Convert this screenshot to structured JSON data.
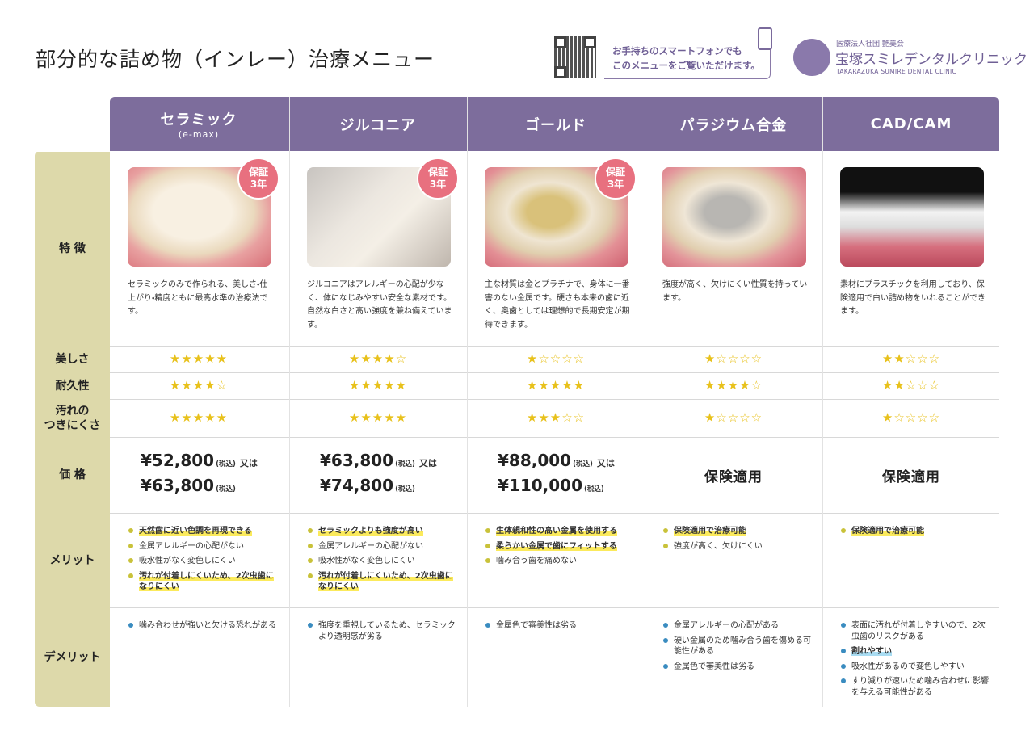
{
  "header": {
    "title": "部分的な詰め物（インレー）治療メニュー",
    "qr_note": [
      "お手持ちのスマートフォンでも",
      "このメニューをご覧いただけます。"
    ],
    "clinic": {
      "corp": "医療法人社団 艶美会",
      "name": "宝塚スミレデンタルクリニック",
      "english": "TAKARAZUKA SUMIRE DENTAL CLINIC"
    }
  },
  "table": {
    "row_labels": [
      [
        "特 徴"
      ],
      [
        "美しさ"
      ],
      [
        "耐久性"
      ],
      [
        "汚れの",
        "つきにくさ"
      ],
      [
        "価 格"
      ],
      [
        "メリット"
      ],
      [
        "デメリット"
      ]
    ],
    "columns": [
      {
        "name": "セラミック",
        "sub": "(e-max)",
        "badge": [
          "保証",
          "3年"
        ],
        "features": "セラミックのみで作られる、美しさ・仕上がり・精度ともに最高水準の治療法です。",
        "beauty": "★★★★★",
        "durability": "★★★★☆",
        "stain": "★★★★★",
        "price": {
          "lines": [
            {
              "amount": "¥52,800",
              "tax": "(税込)",
              "or": "又は"
            },
            {
              "amount": "¥63,800",
              "tax": "(税込)"
            }
          ]
        },
        "merits": [
          {
            "text": "天然歯に近い色調を再現できる",
            "highlight": true
          },
          {
            "text": "金属アレルギーの心配がない",
            "highlight": false
          },
          {
            "text": "吸水性がなく変色しにくい",
            "highlight": false
          },
          {
            "text": "汚れが付着しにくいため、2次虫歯になりにくい",
            "highlight": true
          }
        ],
        "demerits": [
          {
            "text": "噛み合わせが強いと欠ける恐れがある",
            "highlight": false
          }
        ]
      },
      {
        "name": "ジルコニア",
        "badge": [
          "保証",
          "3年"
        ],
        "features": "ジルコニアはアレルギーの心配が少なく、体になじみやすい安全な素材です。自然な白さと高い強度を兼ね備えています。",
        "beauty": "★★★★☆",
        "durability": "★★★★★",
        "stain": "★★★★★",
        "price": {
          "lines": [
            {
              "amount": "¥63,800",
              "tax": "(税込)",
              "or": "又は"
            },
            {
              "amount": "¥74,800",
              "tax": "(税込)"
            }
          ]
        },
        "merits": [
          {
            "text": "セラミックよりも強度が高い",
            "highlight": true
          },
          {
            "text": "金属アレルギーの心配がない",
            "highlight": false
          },
          {
            "text": "吸水性がなく変色しにくい",
            "highlight": false
          },
          {
            "text": "汚れが付着しにくいため、2次虫歯になりにくい",
            "highlight": true
          }
        ],
        "demerits": [
          {
            "text": "強度を重視しているため、セラミックより透明感が劣る",
            "highlight": false
          }
        ]
      },
      {
        "name": "ゴールド",
        "badge": [
          "保証",
          "3年"
        ],
        "features": "主な材質は金とプラチナで、身体に一番害のない金属です。硬さも本来の歯に近く、奥歯としては理想的で長期安定が期待できます。",
        "beauty": "★☆☆☆☆",
        "durability": "★★★★★",
        "stain": "★★★☆☆",
        "price": {
          "lines": [
            {
              "amount": "¥88,000",
              "tax": "(税込)",
              "or": "又は"
            },
            {
              "amount": "¥110,000",
              "tax": "(税込)"
            }
          ]
        },
        "merits": [
          {
            "text": "生体親和性の高い金属を使用する",
            "highlight": true
          },
          {
            "text": "柔らかい金属で歯にフィットする",
            "highlight": true
          },
          {
            "text": "噛み合う歯を痛めない",
            "highlight": false
          }
        ],
        "demerits": [
          {
            "text": "金属色で審美性は劣る",
            "highlight": false
          }
        ]
      },
      {
        "name": "パラジウム合金",
        "features": "強度が高く、欠けにくい性質を持っています。",
        "beauty": "★☆☆☆☆",
        "durability": "★★★★☆",
        "stain": "★☆☆☆☆",
        "price": {
          "text": "保険適用"
        },
        "merits": [
          {
            "text": "保険適用で治療可能",
            "highlight": true
          },
          {
            "text": "強度が高く、欠けにくい",
            "highlight": false
          }
        ],
        "demerits": [
          {
            "text": "金属アレルギーの心配がある",
            "highlight": false
          },
          {
            "text": "硬い金属のため噛み合う歯を傷める可能性がある",
            "highlight": false
          },
          {
            "text": "金属色で審美性は劣る",
            "highlight": false
          }
        ]
      },
      {
        "name": "CAD/CAM",
        "features": "素材にプラスチックを利用しており、保険適用で白い詰め物をいれることができます。",
        "beauty": "★★☆☆☆",
        "durability": "★★☆☆☆",
        "stain": "★☆☆☆☆",
        "price": {
          "text": "保険適用"
        },
        "merits": [
          {
            "text": "保険適用で治療可能",
            "highlight": true
          }
        ],
        "demerits": [
          {
            "text": "表面に汚れが付着しやすいので、2次虫歯のリスクがある",
            "highlight": false
          },
          {
            "text": "割れやすい",
            "highlight": true
          },
          {
            "text": "吸水性があるので変色しやすい",
            "highlight": false
          },
          {
            "text": "すり減りが速いため噛み合わせに影響を与える可能性がある",
            "highlight": false
          }
        ]
      }
    ]
  }
}
